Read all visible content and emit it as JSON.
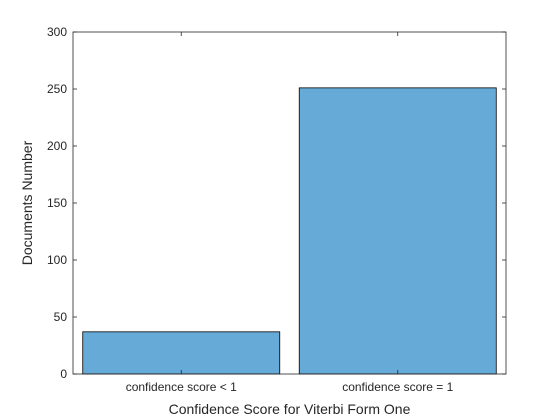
{
  "chart_data": {
    "type": "bar",
    "categories": [
      "confidence score < 1",
      "confidence score = 1"
    ],
    "values": [
      37,
      251
    ],
    "xlabel": "Confidence Score for Viterbi Form One",
    "ylabel": "Documents Number",
    "ylim": [
      0,
      300
    ],
    "yticks": [
      "0",
      "50",
      "100",
      "150",
      "200",
      "250",
      "300"
    ],
    "bar_color": "#66AAD7",
    "grid": false
  }
}
